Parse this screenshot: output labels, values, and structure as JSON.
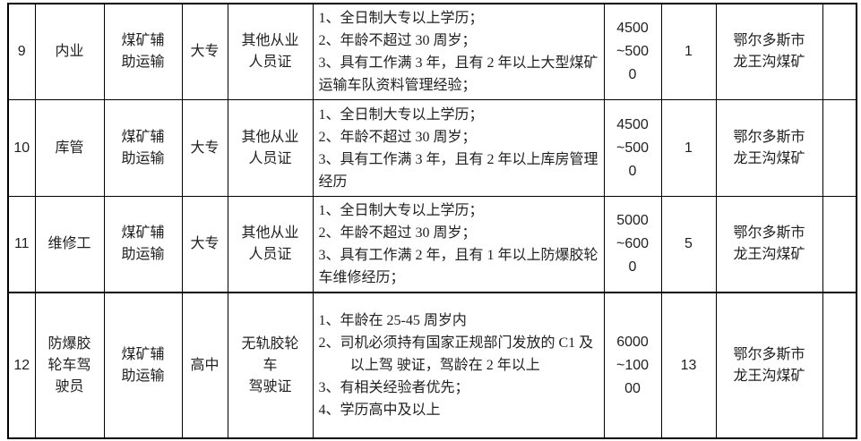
{
  "meta": {
    "background_color": "#ffffff",
    "border_color": "#000000",
    "text_color": "#1f1f1f"
  },
  "table": {
    "rows": [
      {
        "no": "9",
        "position": "内业",
        "department": "煤矿辅助运输",
        "education": "大专",
        "certificate": "其他从业人员证",
        "requirements": [
          {
            "text": "1、全日制大专以上学历；",
            "hang": false
          },
          {
            "text": "2、年龄不超过 30 周岁；",
            "hang": false
          },
          {
            "text": "3、具有工作满 3 年，且有 2 年以上大型煤矿运输车队资料管理经验；",
            "hang": false
          }
        ],
        "salary": "4500~5000",
        "headcount": "1",
        "location": "鄂尔多斯市龙王沟煤矿",
        "remark": ""
      },
      {
        "no": "10",
        "position": "库管",
        "department": "煤矿辅助运输",
        "education": "大专",
        "certificate": "其他从业人员证",
        "requirements": [
          {
            "text": "1、全日制大专以上学历；",
            "hang": false
          },
          {
            "text": "2、年龄不超过 30 周岁；",
            "hang": false
          },
          {
            "text": "3、具有工作满 3 年，且有 2 年以上库房管理经历",
            "hang": false
          }
        ],
        "salary": "4500~5000",
        "headcount": "1",
        "location": "鄂尔多斯市龙王沟煤矿",
        "remark": ""
      },
      {
        "no": "11",
        "position": "维修工",
        "department": "煤矿辅助运输",
        "education": "大专",
        "certificate": "其他从业人员证",
        "requirements": [
          {
            "text": "1、全日制大专以上学历；",
            "hang": false
          },
          {
            "text": "2、年龄不超过 30 周岁；",
            "hang": false
          },
          {
            "text": "3、具有工作满 2 年，且有 1 年以上防爆胶轮车维修经历；",
            "hang": false
          }
        ],
        "salary": "5000~6000",
        "headcount": "5",
        "location": "鄂尔多斯市龙王沟煤矿",
        "remark": ""
      },
      {
        "no": "12",
        "position": "防爆胶轮车驾驶员",
        "department": "煤矿辅助运输",
        "education": "高中",
        "certificate": "无轨胶轮车\n驾驶证",
        "requirements": [
          {
            "text": "1、年龄在 25-45 周岁内",
            "hang": false
          },
          {
            "text": "2、司机必须持有国家正规部门发放的 C1 及以上驾 驶证，驾龄在 2 年以上",
            "hang": true
          },
          {
            "text": "3、有相关经验者优先；",
            "hang": false
          },
          {
            "text": "4、学历高中及以上",
            "hang": false
          }
        ],
        "salary": "6000~10000",
        "headcount": "13",
        "location": "鄂尔多斯市龙王沟煤矿",
        "remark": ""
      }
    ]
  }
}
